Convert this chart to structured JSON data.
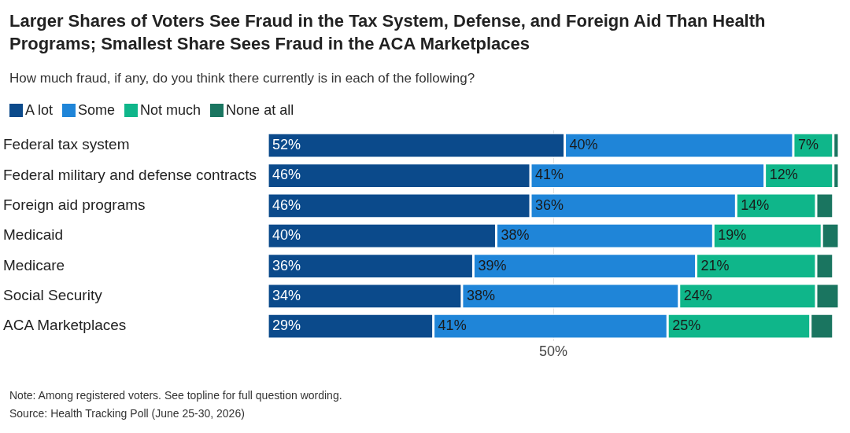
{
  "chart_data": {
    "type": "bar",
    "orientation": "horizontal",
    "stacked": true,
    "title": "Larger Shares of Voters See Fraud in the Tax System, Defense, and Foreign Aid Than Health Programs; Smallest Share Sees Fraud in the ACA Marketplaces",
    "subtitle": "How much fraud, if any, do you think there currently is in each of the following?",
    "categories": [
      "Federal tax system",
      "Federal military and defense contracts",
      "Foreign aid programs",
      "Medicaid",
      "Medicare",
      "Social Security",
      "ACA Marketplaces"
    ],
    "series": [
      {
        "name": "A lot",
        "color": "#0b4a8b",
        "values": [
          52,
          46,
          46,
          40,
          36,
          34,
          29
        ],
        "value_labels": [
          "52%",
          "46%",
          "46%",
          "40%",
          "36%",
          "34%",
          "29%"
        ]
      },
      {
        "name": "Some",
        "color": "#1f85d8",
        "values": [
          40,
          41,
          36,
          38,
          39,
          38,
          41
        ],
        "value_labels": [
          "40%",
          "41%",
          "36%",
          "38%",
          "39%",
          "38%",
          "41%"
        ]
      },
      {
        "name": "Not much",
        "color": "#0fb68a",
        "values": [
          7,
          12,
          14,
          19,
          21,
          24,
          25
        ],
        "value_labels": [
          "7%",
          "12%",
          "14%",
          "19%",
          "21%",
          "24%",
          "25%"
        ]
      },
      {
        "name": "None at all",
        "color": "#1a7560",
        "values": [
          1,
          1,
          3,
          3,
          3,
          4,
          4
        ]
      }
    ],
    "xlim": [
      0,
      100
    ],
    "xticks": [
      {
        "value": 50,
        "label": "50%"
      }
    ],
    "grid": "x",
    "legend": "top left",
    "annotations": [
      "Note: Among registered voters. See topline for full question wording.",
      "Source: Health Tracking Poll (June 25-30, 2026)"
    ]
  }
}
